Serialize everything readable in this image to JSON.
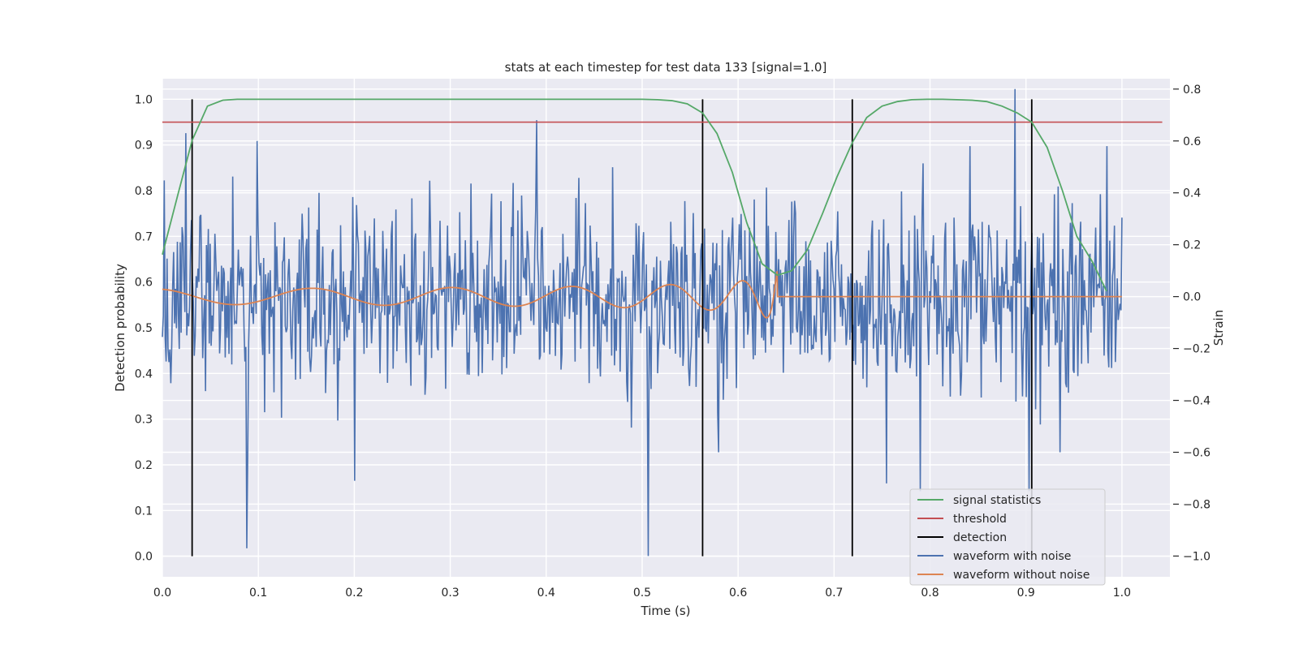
{
  "chart_data": {
    "type": "line",
    "title": "stats at each timestep for test data 133 [signal=1.0]",
    "xlabel": "Time (s)",
    "ylabel": "Detection probability",
    "ylabel_right": "Strain",
    "xlim": [
      0.0,
      1.05
    ],
    "ylim": [
      -0.045,
      1.045
    ],
    "ylim_right": [
      -1.08,
      0.84
    ],
    "x_ticks": [
      0.0,
      0.1,
      0.2,
      0.3,
      0.4,
      0.5,
      0.6,
      0.7,
      0.8,
      0.9,
      1.0
    ],
    "x_tick_labels": [
      "0.0",
      "0.1",
      "0.2",
      "0.3",
      "0.4",
      "0.5",
      "0.6",
      "0.7",
      "0.8",
      "0.9",
      "1.0"
    ],
    "y_ticks": [
      0.0,
      0.1,
      0.2,
      0.3,
      0.4,
      0.5,
      0.6,
      0.7,
      0.8,
      0.9,
      1.0
    ],
    "y_tick_labels": [
      "0.0",
      "0.1",
      "0.2",
      "0.3",
      "0.4",
      "0.5",
      "0.6",
      "0.7",
      "0.8",
      "0.9",
      "1.0"
    ],
    "y_right_ticks": [
      -1.0,
      -0.8,
      -0.6,
      -0.4,
      -0.2,
      0.0,
      0.2,
      0.4,
      0.6,
      0.8
    ],
    "y_right_tick_labels": [
      "−1.0",
      "−0.8",
      "−0.6",
      "−0.4",
      "−0.2",
      "0.0",
      "0.2",
      "0.4",
      "0.6",
      "0.8"
    ],
    "grid": true,
    "legend_position": "bottom-right",
    "colors": {
      "background": "#eaeaf2",
      "signal": "#55a868",
      "threshold": "#c44e52",
      "detection": "#000000",
      "noisy": "#4c72b0",
      "clean": "#dd8452"
    },
    "series": [
      {
        "name": "signal statistics",
        "axis": "left",
        "x": [
          0.0,
          0.016,
          0.031,
          0.047,
          0.063,
          0.078,
          0.094,
          0.109,
          0.125,
          0.25,
          0.375,
          0.5,
          0.516,
          0.531,
          0.547,
          0.563,
          0.578,
          0.594,
          0.609,
          0.625,
          0.641,
          0.656,
          0.672,
          0.688,
          0.703,
          0.719,
          0.734,
          0.75,
          0.766,
          0.781,
          0.797,
          0.813,
          0.828,
          0.844,
          0.859,
          0.875,
          0.891,
          0.906,
          0.922,
          0.938,
          0.953,
          0.969,
          0.984
        ],
        "values": [
          0.66,
          0.79,
          0.91,
          0.985,
          0.998,
          1.0,
          1.0,
          1.0,
          1.0,
          1.0,
          1.0,
          1.0,
          0.999,
          0.997,
          0.99,
          0.97,
          0.925,
          0.84,
          0.73,
          0.64,
          0.615,
          0.625,
          0.67,
          0.75,
          0.83,
          0.905,
          0.96,
          0.985,
          0.995,
          0.999,
          1.0,
          1.0,
          0.999,
          0.998,
          0.995,
          0.985,
          0.97,
          0.95,
          0.895,
          0.8,
          0.7,
          0.645,
          0.58
        ]
      },
      {
        "name": "threshold",
        "axis": "left",
        "x": [
          0.0,
          1.042
        ],
        "values": [
          0.95,
          0.95
        ]
      },
      {
        "name": "detection",
        "axis": "left",
        "x": [
          0.031,
          0.563,
          0.719,
          0.906
        ],
        "values": [
          1.0,
          1.0,
          1.0,
          1.0
        ]
      },
      {
        "name": "waveform with noise",
        "axis": "right",
        "x_start": 0.0,
        "x_end": 1.0,
        "points": 1024,
        "sigma": 0.18,
        "spikes": [
          [
            0.0035,
            -0.25
          ],
          [
            0.024,
            0.63
          ],
          [
            0.088,
            -0.97
          ],
          [
            0.099,
            0.6
          ],
          [
            0.2,
            -0.71
          ],
          [
            0.39,
            0.68
          ],
          [
            0.506,
            -1.0
          ],
          [
            0.63,
            0.42
          ],
          [
            0.755,
            -0.72
          ],
          [
            0.79,
            -0.75
          ],
          [
            0.889,
            0.8
          ],
          [
            0.903,
            -0.75
          ],
          [
            0.935,
            -0.6
          ],
          [
            0.984,
            0.58
          ]
        ]
      },
      {
        "name": "waveform without noise",
        "axis": "right",
        "x_start": 0.0,
        "x_end": 1.0,
        "values_note": "chirp ending at 0.641 s then 0.0"
      }
    ]
  }
}
